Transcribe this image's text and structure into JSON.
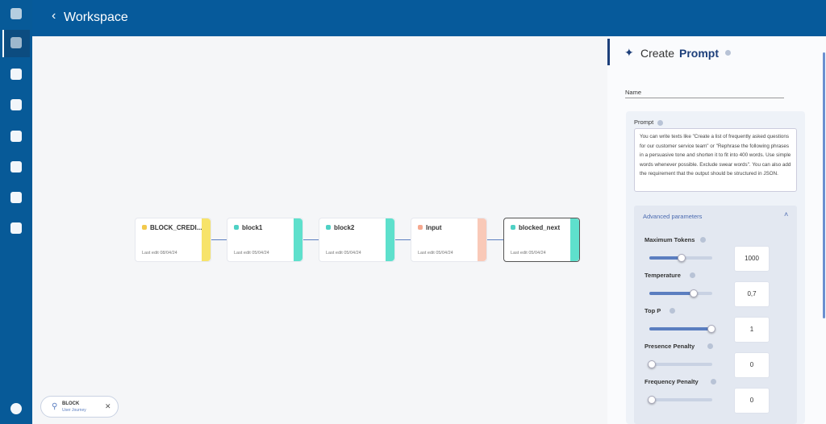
{
  "header": {
    "title": "Workspace"
  },
  "nodes": [
    {
      "label": "BLOCK_CREDI...",
      "edit": "Last edit 08/04/24"
    },
    {
      "label": "block1",
      "edit": "Last edit 05/04/24"
    },
    {
      "label": "block2",
      "edit": "Last edit 05/04/24"
    },
    {
      "label": "Input",
      "edit": "Last edit 05/04/24"
    },
    {
      "label": "blocked_next",
      "edit": "Last edit 05/04/24"
    }
  ],
  "panel": {
    "title_light": "Create",
    "title_bold": "Prompt",
    "name_label": "Name",
    "prompt_label": "Prompt",
    "prompt_text": "You can write texts like \"Create a list of frequently asked questions for our customer service team\" or \"Rephrase the following phrases in a persuasive tone and shorten it to fit into 400 words. Use simple words whenever possible. Exclude swear words\". You can also add the requirement that the output should be structured in JSON.",
    "advanced": "Advanced parameters",
    "params": [
      {
        "label": "Maximum Tokens",
        "value": "1000"
      },
      {
        "label": "Temperature",
        "value": "0,7"
      },
      {
        "label": "Top P",
        "value": "1"
      },
      {
        "label": "Presence Penalty",
        "value": "0"
      },
      {
        "label": "Frequency Penalty",
        "value": "0"
      }
    ]
  },
  "chip": {
    "title": "BLOCK",
    "subtitle": "User Journey"
  }
}
